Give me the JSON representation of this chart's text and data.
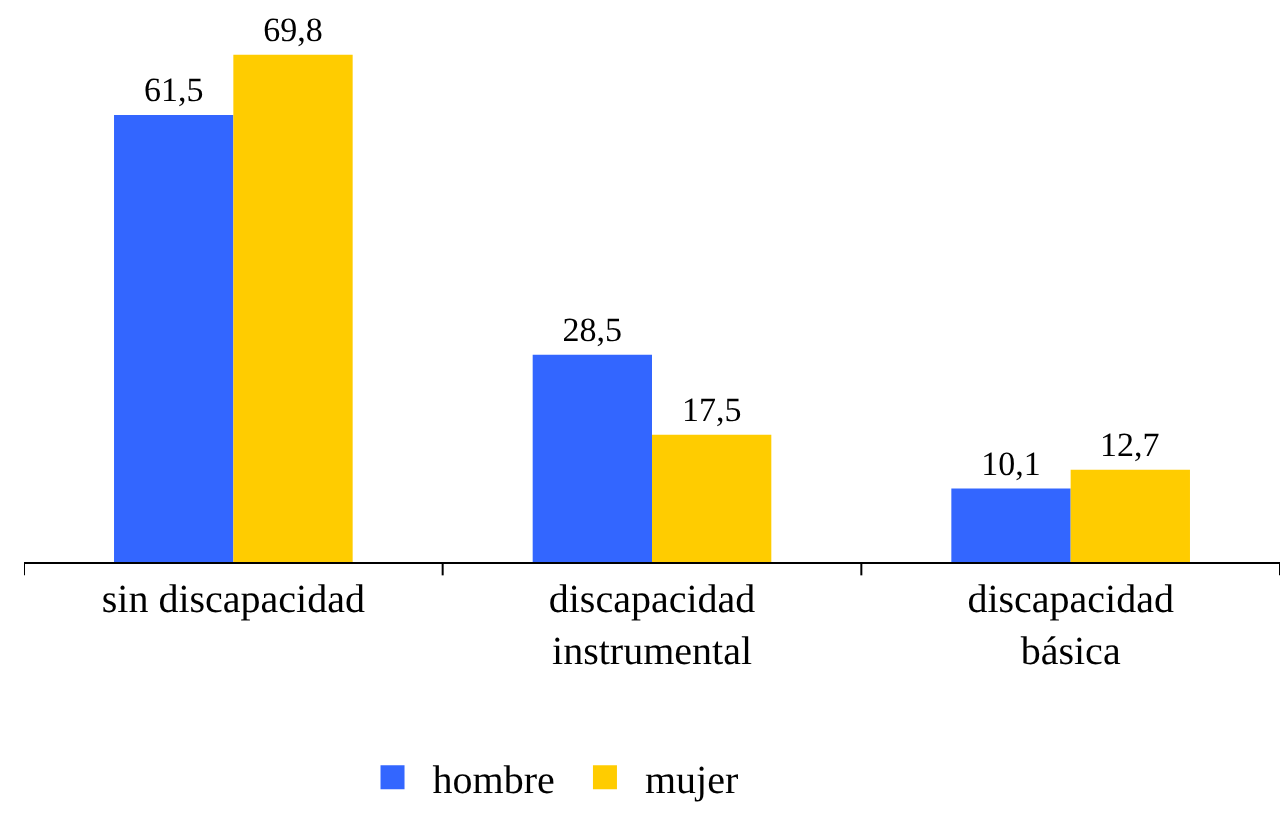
{
  "chart_data": {
    "type": "bar",
    "categories": [
      "sin discapacidad",
      "discapacidad\ninstrumental",
      "discapacidad\nbásica"
    ],
    "series": [
      {
        "name": "hombre",
        "color": "#3366ff",
        "values": [
          61.5,
          28.5,
          10.1
        ],
        "value_labels": [
          "61,5",
          "28,5",
          "10,1"
        ]
      },
      {
        "name": "mujer",
        "color": "#ffcc00",
        "values": [
          69.8,
          17.5,
          12.7
        ],
        "value_labels": [
          "69,8",
          "17,5",
          "12,7"
        ]
      }
    ],
    "legend": "bottom"
  }
}
